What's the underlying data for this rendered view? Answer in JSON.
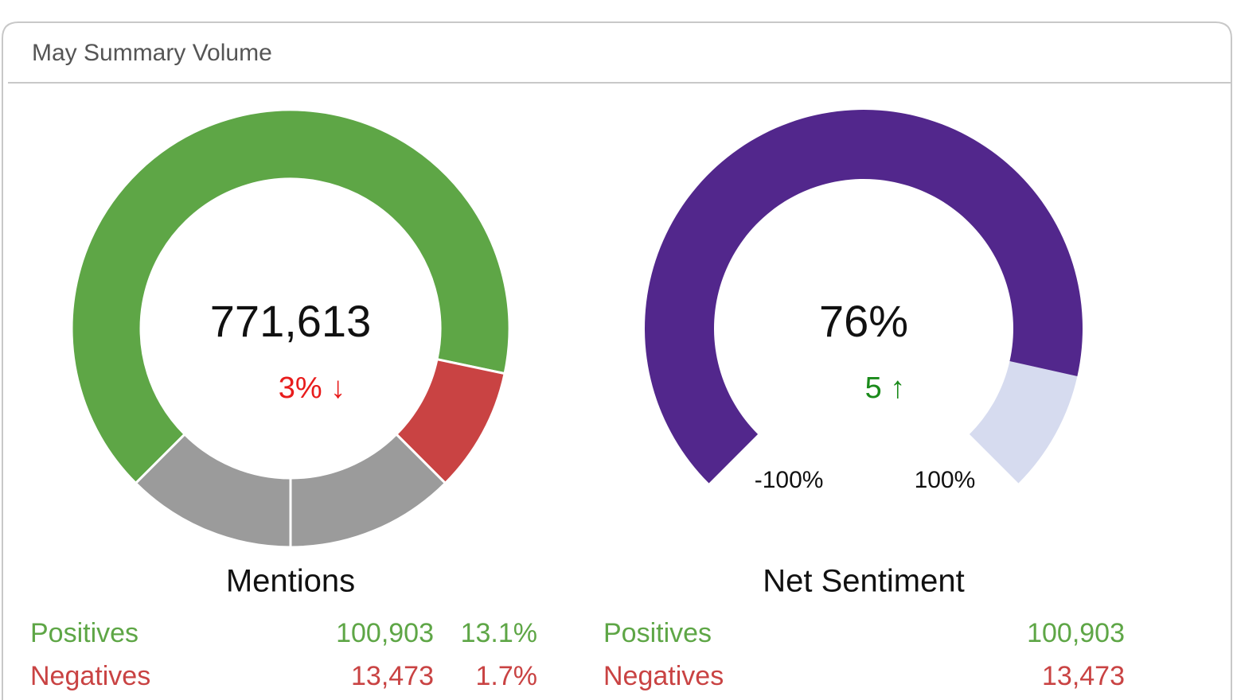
{
  "panel_title": "May Summary Volume",
  "chart_data": [
    {
      "type": "donut",
      "title": "Mentions",
      "center_label": "771,613",
      "change": "3% ↓",
      "change_color": "#e81c1c",
      "values": [
        65.8,
        9.2,
        12.5,
        12.5
      ],
      "colors": [
        "#5ea646",
        "#c94343",
        "#9b9b9b",
        "#9b9b9b"
      ],
      "rows": [
        {
          "label": "Positives",
          "value": "100,903",
          "share": "13.1%",
          "color": "#5ea646"
        },
        {
          "label": "Negatives",
          "value": "13,473",
          "share": "1.7%",
          "color": "#c94343"
        }
      ]
    },
    {
      "type": "gauge",
      "title": "Net Sentiment",
      "values": [
        76
      ],
      "value_labels": [
        "76%"
      ],
      "change": "5 ↑",
      "change_color": "#1a8a1a",
      "ylim": [
        -100,
        100
      ],
      "yticks": [
        {
          "value": -100,
          "label": "-100%"
        },
        {
          "value": 100,
          "label": "100%"
        }
      ],
      "color": "#52278c",
      "track_color": "#d6dbef",
      "rows": [
        {
          "label": "Positives",
          "value": "100,903",
          "color": "#5ea646"
        },
        {
          "label": "Negatives",
          "value": "13,473",
          "color": "#c94343"
        }
      ]
    }
  ]
}
